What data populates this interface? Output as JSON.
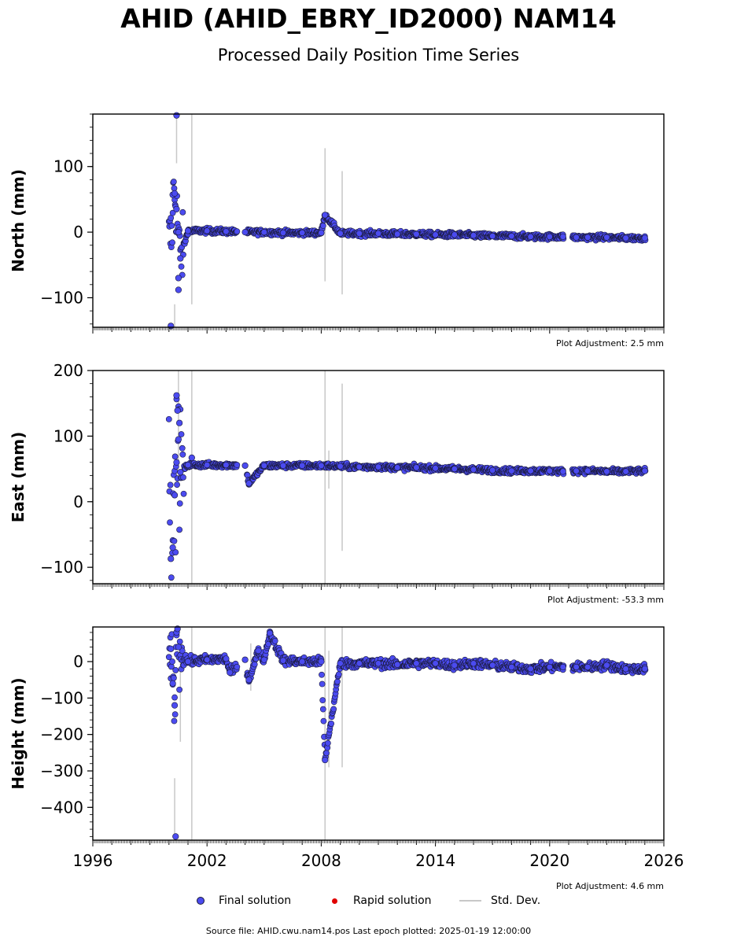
{
  "header": {
    "title": "AHID (AHID_EBRY_ID2000) NAM14",
    "subtitle": "Processed Daily Position Time Series"
  },
  "legend": {
    "final": "Final solution",
    "rapid": "Rapid solution",
    "std": "Std. Dev."
  },
  "footer": {
    "text": "Source file: AHID.cwu.nam14.pos  Last epoch plotted: 2025-01-19 12:00:00"
  },
  "colors": {
    "final_fill": "#4b4bf0",
    "final_edge": "#1a1a3a",
    "rapid": "#e00000",
    "std": "#c8c8c8"
  },
  "chart_data": [
    {
      "type": "scatter",
      "name": "north",
      "ylabel": "North (mm)",
      "xlim": [
        1996,
        2026
      ],
      "ylim": [
        -145,
        180
      ],
      "yticks": [
        -100,
        0,
        100
      ],
      "adjustment": "Plot Adjustment: 2.5 mm",
      "show_xticklabels": false,
      "series": {
        "x": [
          2000.2,
          2000.3,
          2000.4,
          2000.5,
          2000.6,
          2001.0,
          2002.0,
          2003.0,
          2004.0,
          2005.0,
          2006.0,
          2007.0,
          2008.0,
          2008.2,
          2009.0,
          2010.0,
          2011.0,
          2012.0,
          2013.0,
          2014.0,
          2015.0,
          2016.0,
          2017.0,
          2018.0,
          2019.0,
          2020.0,
          2020.7,
          2021.4,
          2022.0,
          2023.0,
          2024.0,
          2025.0
        ],
        "y": [
          57,
          59,
          35,
          0,
          -40,
          2,
          2,
          1,
          0,
          0,
          -1,
          -1,
          -1,
          26,
          -2,
          -2,
          -2,
          -3,
          -3,
          -4,
          -4,
          -5,
          -6,
          -6,
          -7,
          -7,
          -7,
          -8,
          -8,
          -8,
          -9,
          -9
        ]
      },
      "outliers": [
        [
          2000.4,
          178
        ],
        [
          2000.1,
          -143
        ],
        [
          2000.5,
          -70
        ],
        [
          2000.5,
          -88
        ]
      ],
      "std_bars": [
        [
          2000.4,
          105,
          180
        ],
        [
          2001.2,
          -110,
          180
        ],
        [
          2008.2,
          -75,
          128
        ],
        [
          2009.1,
          -95,
          93
        ],
        [
          2000.3,
          -145,
          -110
        ]
      ]
    },
    {
      "type": "scatter",
      "name": "east",
      "ylabel": "East (mm)",
      "xlim": [
        1996,
        2026
      ],
      "ylim": [
        -125,
        200
      ],
      "yticks": [
        -100,
        0,
        100,
        200
      ],
      "adjustment": "Plot Adjustment: -53.3 mm",
      "show_xticklabels": false,
      "series": {
        "x": [
          2000.1,
          2000.2,
          2000.3,
          2000.4,
          2000.5,
          2000.6,
          2001.0,
          2002.0,
          2003.0,
          2004.0,
          2004.2,
          2005.0,
          2006.0,
          2007.0,
          2008.0,
          2009.0,
          2010.0,
          2011.0,
          2012.0,
          2013.0,
          2014.0,
          2015.0,
          2016.0,
          2017.0,
          2018.0,
          2019.0,
          2020.0,
          2020.7,
          2021.4,
          2022.0,
          2023.0,
          2024.0,
          2025.0
        ],
        "y": [
          -87,
          -70,
          10,
          60,
          95,
          45,
          56,
          56,
          56,
          55,
          28,
          55,
          55,
          55,
          55,
          54,
          53,
          53,
          52,
          52,
          51,
          50,
          49,
          48,
          47,
          47,
          47,
          46,
          47,
          47,
          46,
          46,
          47
        ]
      },
      "outliers": [
        [
          2000.4,
          162
        ],
        [
          2000.45,
          139
        ],
        [
          2000.55,
          120
        ],
        [
          2001.2,
          67
        ]
      ],
      "std_bars": [
        [
          2000.5,
          60,
          200
        ],
        [
          2001.2,
          -125,
          200
        ],
        [
          2008.2,
          -125,
          200
        ],
        [
          2008.4,
          20,
          78
        ],
        [
          2009.1,
          -75,
          180
        ]
      ]
    },
    {
      "type": "scatter",
      "name": "height",
      "ylabel": "Height (mm)",
      "xlim": [
        1996,
        2026
      ],
      "ylim": [
        -490,
        95
      ],
      "yticks": [
        -400,
        -300,
        -200,
        -100,
        0
      ],
      "adjustment": "Plot Adjustment: 4.6 mm",
      "show_xticklabels": true,
      "xticks": [
        1996,
        2002,
        2008,
        2014,
        2020,
        2026
      ],
      "series": {
        "x": [
          2000.1,
          2000.2,
          2000.3,
          2000.4,
          2000.5,
          2001.0,
          2002.0,
          2003.0,
          2003.2,
          2004.0,
          2004.2,
          2004.7,
          2005.0,
          2005.3,
          2006.0,
          2007.0,
          2008.0,
          2008.2,
          2009.0,
          2010.0,
          2011.0,
          2012.0,
          2013.0,
          2014.0,
          2015.0,
          2016.0,
          2017.0,
          2018.0,
          2019.0,
          2020.0,
          2020.7,
          2021.4,
          2022.0,
          2023.0,
          2024.0,
          2025.0
        ],
        "y": [
          35,
          -60,
          -120,
          80,
          40,
          0,
          5,
          8,
          -30,
          5,
          -50,
          30,
          5,
          78,
          3,
          0,
          0,
          -270,
          -5,
          -5,
          -5,
          -8,
          -5,
          -5,
          -10,
          -5,
          -10,
          -15,
          -20,
          -15,
          -15,
          -15,
          -15,
          -10,
          -20,
          -20
        ]
      },
      "outliers": [
        [
          2000.35,
          -480
        ],
        [
          2000.45,
          90
        ]
      ],
      "std_bars": [
        [
          2000.3,
          -490,
          -320
        ],
        [
          2000.6,
          -220,
          0
        ],
        [
          2001.2,
          -490,
          95
        ],
        [
          2004.3,
          -80,
          50
        ],
        [
          2008.2,
          -490,
          95
        ],
        [
          2008.4,
          -290,
          30
        ],
        [
          2009.1,
          -290,
          95
        ]
      ]
    }
  ]
}
